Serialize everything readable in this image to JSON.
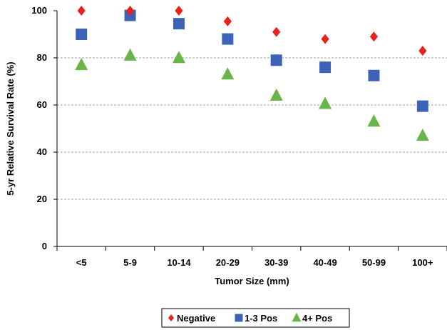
{
  "chart_data": {
    "type": "scatter",
    "xlabel": "Tumor Size (mm)",
    "ylabel": "5-yr Relative Survival Rate (%)",
    "ylim": [
      0,
      100
    ],
    "yticks": [
      0,
      20,
      40,
      60,
      80,
      100
    ],
    "grid": true,
    "legend_position": "bottom",
    "categories": [
      "<5",
      "5-9",
      "10-14",
      "20-29",
      "30-39",
      "40-49",
      "50-99",
      "100+"
    ],
    "series": [
      {
        "name": "Negative",
        "marker": "diamond",
        "color": "#e8211d",
        "values": [
          100,
          100,
          100,
          95.5,
          91,
          88,
          89,
          83
        ]
      },
      {
        "name": "1-3 Pos",
        "marker": "square",
        "color": "#3d63b8",
        "values": [
          90,
          98,
          94.5,
          88,
          79,
          76,
          72.5,
          59.5
        ]
      },
      {
        "name": "4+ Pos",
        "marker": "triangle",
        "color": "#6ab54a",
        "values": [
          77,
          81,
          80,
          73,
          64,
          60.5,
          53,
          47
        ]
      }
    ]
  }
}
